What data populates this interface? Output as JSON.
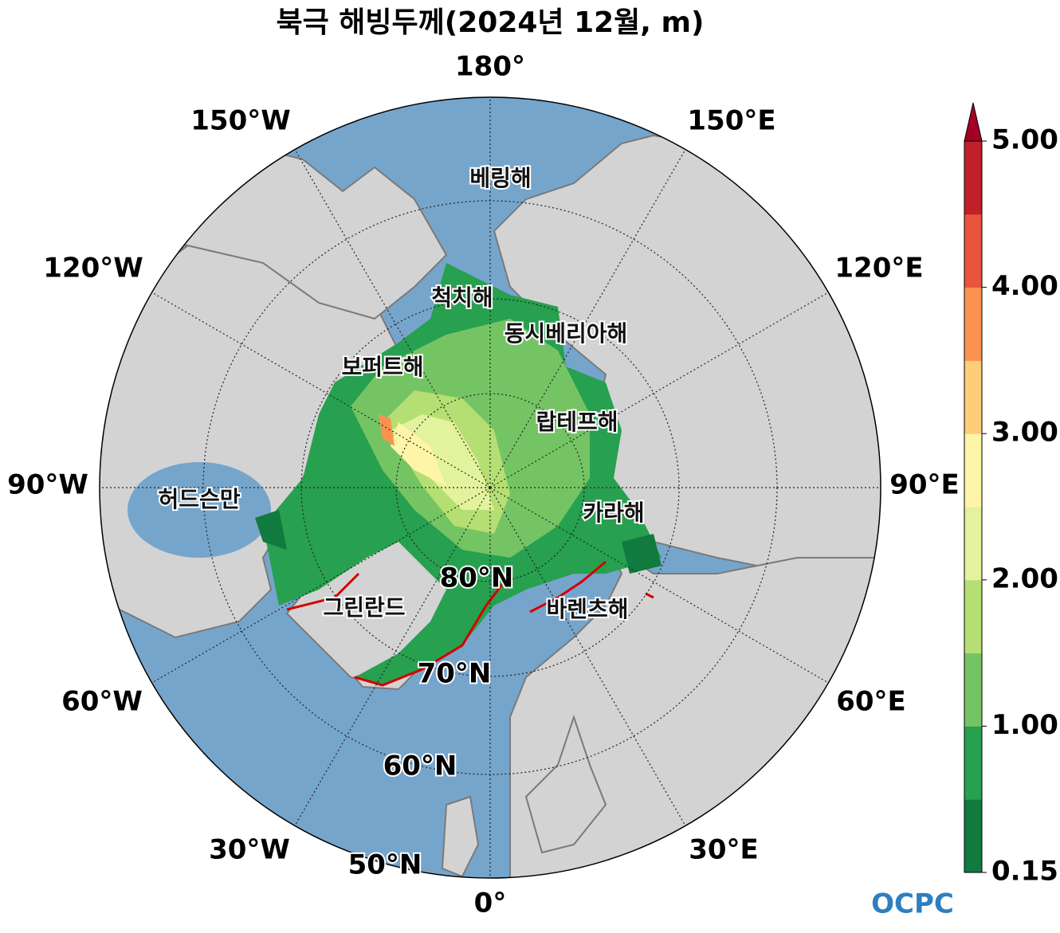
{
  "title": "북극 해빙두께(2024년 12월, m)",
  "longitude_labels": [
    "180°",
    "150°E",
    "120°E",
    "90°E",
    "60°E",
    "30°E",
    "0°",
    "30°W",
    "60°W",
    "90°W",
    "120°W",
    "150°W"
  ],
  "latitude_labels": [
    "80°N",
    "70°N",
    "60°N",
    "50°N"
  ],
  "sea_labels": [
    "베링해",
    "척치해",
    "동시베리아해",
    "보퍼트해",
    "랍테프해",
    "허드슨만",
    "카라해",
    "그린란드",
    "바렌츠해"
  ],
  "colorbar": {
    "levels": [
      0.15,
      0.5,
      1,
      1.5,
      2,
      2.5,
      3,
      3.5,
      4,
      4.5,
      5
    ],
    "colors": [
      "#107a3f",
      "#27a050",
      "#75c464",
      "#b5df72",
      "#e3f29c",
      "#fff5a8",
      "#fdcd78",
      "#fa9350",
      "#e8553b",
      "#c11f2a"
    ],
    "extend_color": "#a50026",
    "ticks": [
      {
        "value": 0.15,
        "label": "0.15"
      },
      {
        "value": 1,
        "label": "1.00"
      },
      {
        "value": 2,
        "label": "2.00"
      },
      {
        "value": 3,
        "label": "3.00"
      },
      {
        "value": 4,
        "label": "4.00"
      },
      {
        "value": 5,
        "label": "5.00"
      }
    ]
  },
  "logo": "OCPC"
}
